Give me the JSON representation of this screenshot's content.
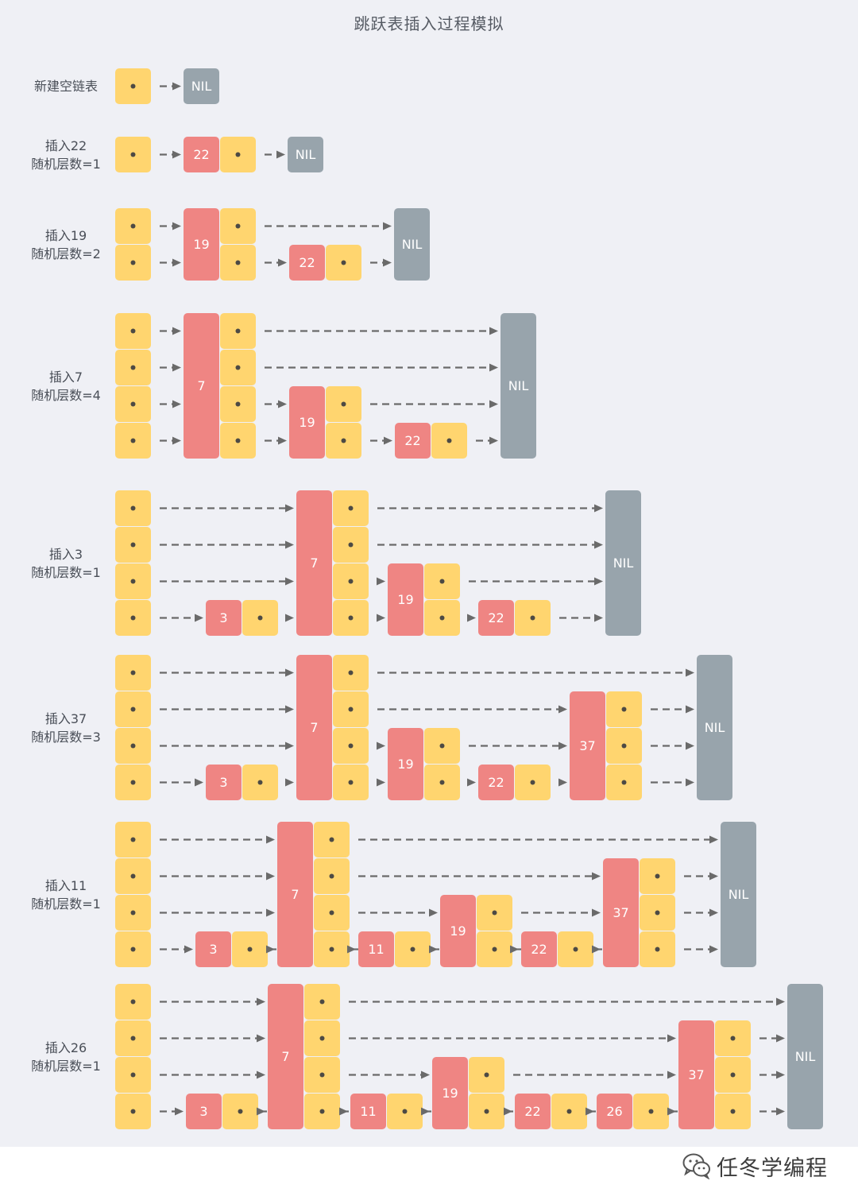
{
  "title": "跳跃表插入过程模拟",
  "nil_label": "NIL",
  "colors": {
    "background": "#eff0f5",
    "pointer_box": "#ffd56f",
    "key_box": "#ef8583",
    "nil_box": "#98a4ac",
    "arrow": "#6a6a6a",
    "dot": "#4d4a44"
  },
  "steps": [
    {
      "label": [
        "新建空链表"
      ],
      "nodes": []
    },
    {
      "label": [
        "插入22",
        "随机层数=1"
      ],
      "nodes": [
        {
          "key": "22",
          "levels": 1
        }
      ]
    },
    {
      "label": [
        "插入19",
        "随机层数=2"
      ],
      "nodes": [
        {
          "key": "19",
          "levels": 2
        },
        {
          "key": "22",
          "levels": 1
        }
      ]
    },
    {
      "label": [
        "插入7",
        "随机层数=4"
      ],
      "nodes": [
        {
          "key": "7",
          "levels": 4
        },
        {
          "key": "19",
          "levels": 2
        },
        {
          "key": "22",
          "levels": 1
        }
      ]
    },
    {
      "label": [
        "插入3",
        "随机层数=1"
      ],
      "nodes": [
        {
          "key": "3",
          "levels": 1
        },
        {
          "key": "7",
          "levels": 4
        },
        {
          "key": "19",
          "levels": 2
        },
        {
          "key": "22",
          "levels": 1
        }
      ]
    },
    {
      "label": [
        "插入37",
        "随机层数=3"
      ],
      "nodes": [
        {
          "key": "3",
          "levels": 1
        },
        {
          "key": "7",
          "levels": 4
        },
        {
          "key": "19",
          "levels": 2
        },
        {
          "key": "22",
          "levels": 1
        },
        {
          "key": "37",
          "levels": 3
        }
      ]
    },
    {
      "label": [
        "插入11",
        "随机层数=1"
      ],
      "nodes": [
        {
          "key": "3",
          "levels": 1
        },
        {
          "key": "7",
          "levels": 4
        },
        {
          "key": "11",
          "levels": 1
        },
        {
          "key": "19",
          "levels": 2
        },
        {
          "key": "22",
          "levels": 1
        },
        {
          "key": "37",
          "levels": 3
        }
      ]
    },
    {
      "label": [
        "插入26",
        "随机层数=1"
      ],
      "nodes": [
        {
          "key": "3",
          "levels": 1
        },
        {
          "key": "7",
          "levels": 4
        },
        {
          "key": "11",
          "levels": 1
        },
        {
          "key": "19",
          "levels": 2
        },
        {
          "key": "22",
          "levels": 1
        },
        {
          "key": "26",
          "levels": 1
        },
        {
          "key": "37",
          "levels": 3
        }
      ]
    }
  ],
  "watermark": {
    "icon": "wechat-icon",
    "text": "任冬学编程"
  }
}
